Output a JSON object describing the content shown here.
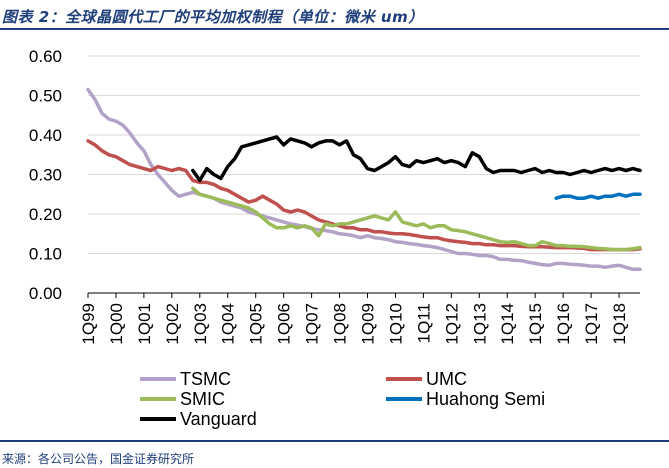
{
  "figure": {
    "title": "图表 2：全球晶圆代工厂的平均加权制程（单位：微米 um）",
    "source": "来源：各公司公告，国金证券研究所"
  },
  "chart_data": {
    "type": "line",
    "title": "图表 2：全球晶圆代工厂的平均加权制程（单位：微米 um）",
    "xlabel": "",
    "ylabel": "",
    "ylim": [
      0,
      0.6
    ],
    "yticks": [
      "0.00",
      "0.10",
      "0.20",
      "0.30",
      "0.40",
      "0.50",
      "0.60"
    ],
    "x_start_year": 1999,
    "x_end_quarter_index": 79,
    "categories": [
      "1Q99",
      "1Q00",
      "1Q01",
      "1Q02",
      "1Q03",
      "1Q04",
      "1Q05",
      "1Q06",
      "1Q07",
      "1Q08",
      "1Q09",
      "1Q10",
      "1Q11",
      "1Q12",
      "1Q13",
      "1Q14",
      "1Q15",
      "1Q16",
      "1Q17",
      "1Q18"
    ],
    "legend_position": "bottom",
    "series": [
      {
        "name": "TSMC",
        "color": "#b3a2c7",
        "points": [
          [
            0,
            0.515
          ],
          [
            1,
            0.49
          ],
          [
            2,
            0.455
          ],
          [
            3,
            0.44
          ],
          [
            4,
            0.435
          ],
          [
            5,
            0.425
          ],
          [
            6,
            0.405
          ],
          [
            7,
            0.38
          ],
          [
            8,
            0.36
          ],
          [
            9,
            0.325
          ],
          [
            10,
            0.3
          ],
          [
            11,
            0.28
          ],
          [
            12,
            0.26
          ],
          [
            13,
            0.245
          ],
          [
            14,
            0.25
          ],
          [
            15,
            0.255
          ],
          [
            16,
            0.25
          ],
          [
            17,
            0.245
          ],
          [
            18,
            0.24
          ],
          [
            19,
            0.23
          ],
          [
            20,
            0.225
          ],
          [
            21,
            0.22
          ],
          [
            22,
            0.215
          ],
          [
            23,
            0.205
          ],
          [
            24,
            0.2
          ],
          [
            25,
            0.195
          ],
          [
            26,
            0.19
          ],
          [
            27,
            0.185
          ],
          [
            28,
            0.18
          ],
          [
            29,
            0.175
          ],
          [
            30,
            0.172
          ],
          [
            31,
            0.168
          ],
          [
            32,
            0.163
          ],
          [
            33,
            0.16
          ],
          [
            34,
            0.158
          ],
          [
            35,
            0.155
          ],
          [
            36,
            0.15
          ],
          [
            37,
            0.148
          ],
          [
            38,
            0.145
          ],
          [
            39,
            0.14
          ],
          [
            40,
            0.145
          ],
          [
            41,
            0.14
          ],
          [
            42,
            0.138
          ],
          [
            43,
            0.135
          ],
          [
            44,
            0.13
          ],
          [
            45,
            0.128
          ],
          [
            46,
            0.125
          ],
          [
            47,
            0.123
          ],
          [
            48,
            0.12
          ],
          [
            49,
            0.118
          ],
          [
            50,
            0.115
          ],
          [
            51,
            0.11
          ],
          [
            52,
            0.105
          ],
          [
            53,
            0.1
          ],
          [
            54,
            0.1
          ],
          [
            55,
            0.098
          ],
          [
            56,
            0.095
          ],
          [
            57,
            0.095
          ],
          [
            58,
            0.092
          ],
          [
            59,
            0.085
          ],
          [
            60,
            0.085
          ],
          [
            61,
            0.083
          ],
          [
            62,
            0.082
          ],
          [
            63,
            0.078
          ],
          [
            64,
            0.075
          ],
          [
            65,
            0.072
          ],
          [
            66,
            0.07
          ],
          [
            67,
            0.075
          ],
          [
            68,
            0.075
          ],
          [
            69,
            0.073
          ],
          [
            70,
            0.072
          ],
          [
            71,
            0.07
          ],
          [
            72,
            0.068
          ],
          [
            73,
            0.068
          ],
          [
            74,
            0.065
          ],
          [
            75,
            0.068
          ],
          [
            76,
            0.07
          ],
          [
            77,
            0.065
          ],
          [
            78,
            0.06
          ],
          [
            79,
            0.06
          ]
        ]
      },
      {
        "name": "UMC",
        "color": "#c0504d",
        "points": [
          [
            0,
            0.385
          ],
          [
            1,
            0.375
          ],
          [
            2,
            0.36
          ],
          [
            3,
            0.35
          ],
          [
            4,
            0.345
          ],
          [
            5,
            0.335
          ],
          [
            6,
            0.325
          ],
          [
            7,
            0.32
          ],
          [
            8,
            0.315
          ],
          [
            9,
            0.31
          ],
          [
            10,
            0.32
          ],
          [
            11,
            0.315
          ],
          [
            12,
            0.31
          ],
          [
            13,
            0.315
          ],
          [
            14,
            0.31
          ],
          [
            15,
            0.285
          ],
          [
            16,
            0.28
          ],
          [
            17,
            0.28
          ],
          [
            18,
            0.275
          ],
          [
            19,
            0.265
          ],
          [
            20,
            0.26
          ],
          [
            21,
            0.25
          ],
          [
            22,
            0.24
          ],
          [
            23,
            0.23
          ],
          [
            24,
            0.235
          ],
          [
            25,
            0.245
          ],
          [
            26,
            0.235
          ],
          [
            27,
            0.225
          ],
          [
            28,
            0.21
          ],
          [
            29,
            0.205
          ],
          [
            30,
            0.21
          ],
          [
            31,
            0.205
          ],
          [
            32,
            0.195
          ],
          [
            33,
            0.185
          ],
          [
            34,
            0.18
          ],
          [
            35,
            0.175
          ],
          [
            36,
            0.17
          ],
          [
            37,
            0.165
          ],
          [
            38,
            0.165
          ],
          [
            39,
            0.16
          ],
          [
            40,
            0.16
          ],
          [
            41,
            0.155
          ],
          [
            42,
            0.155
          ],
          [
            43,
            0.152
          ],
          [
            44,
            0.15
          ],
          [
            45,
            0.15
          ],
          [
            46,
            0.148
          ],
          [
            47,
            0.145
          ],
          [
            48,
            0.142
          ],
          [
            49,
            0.14
          ],
          [
            50,
            0.14
          ],
          [
            51,
            0.135
          ],
          [
            52,
            0.132
          ],
          [
            53,
            0.13
          ],
          [
            54,
            0.128
          ],
          [
            55,
            0.125
          ],
          [
            56,
            0.125
          ],
          [
            57,
            0.122
          ],
          [
            58,
            0.122
          ],
          [
            59,
            0.12
          ],
          [
            60,
            0.12
          ],
          [
            61,
            0.12
          ],
          [
            62,
            0.118
          ],
          [
            63,
            0.117
          ],
          [
            64,
            0.117
          ],
          [
            65,
            0.117
          ],
          [
            66,
            0.116
          ],
          [
            67,
            0.115
          ],
          [
            68,
            0.115
          ],
          [
            69,
            0.115
          ],
          [
            70,
            0.114
          ],
          [
            71,
            0.113
          ],
          [
            72,
            0.11
          ],
          [
            73,
            0.11
          ],
          [
            74,
            0.11
          ],
          [
            75,
            0.11
          ],
          [
            76,
            0.11
          ],
          [
            77,
            0.11
          ],
          [
            78,
            0.11
          ],
          [
            79,
            0.112
          ]
        ]
      },
      {
        "name": "SMIC",
        "color": "#9bbb59",
        "points": [
          [
            15,
            0.265
          ],
          [
            16,
            0.25
          ],
          [
            17,
            0.245
          ],
          [
            18,
            0.24
          ],
          [
            19,
            0.235
          ],
          [
            20,
            0.23
          ],
          [
            21,
            0.225
          ],
          [
            22,
            0.22
          ],
          [
            23,
            0.215
          ],
          [
            24,
            0.205
          ],
          [
            25,
            0.19
          ],
          [
            26,
            0.175
          ],
          [
            27,
            0.165
          ],
          [
            28,
            0.165
          ],
          [
            29,
            0.17
          ],
          [
            30,
            0.165
          ],
          [
            31,
            0.17
          ],
          [
            32,
            0.165
          ],
          [
            33,
            0.145
          ],
          [
            34,
            0.175
          ],
          [
            35,
            0.17
          ],
          [
            36,
            0.175
          ],
          [
            37,
            0.175
          ],
          [
            38,
            0.18
          ],
          [
            39,
            0.185
          ],
          [
            40,
            0.19
          ],
          [
            41,
            0.195
          ],
          [
            42,
            0.19
          ],
          [
            43,
            0.185
          ],
          [
            44,
            0.205
          ],
          [
            45,
            0.18
          ],
          [
            46,
            0.175
          ],
          [
            47,
            0.17
          ],
          [
            48,
            0.175
          ],
          [
            49,
            0.165
          ],
          [
            50,
            0.17
          ],
          [
            51,
            0.17
          ],
          [
            52,
            0.16
          ],
          [
            53,
            0.158
          ],
          [
            54,
            0.155
          ],
          [
            55,
            0.15
          ],
          [
            56,
            0.145
          ],
          [
            57,
            0.14
          ],
          [
            58,
            0.135
          ],
          [
            59,
            0.13
          ],
          [
            60,
            0.128
          ],
          [
            61,
            0.13
          ],
          [
            62,
            0.125
          ],
          [
            63,
            0.12
          ],
          [
            64,
            0.12
          ],
          [
            65,
            0.13
          ],
          [
            66,
            0.125
          ],
          [
            67,
            0.12
          ],
          [
            68,
            0.12
          ],
          [
            69,
            0.118
          ],
          [
            70,
            0.118
          ],
          [
            71,
            0.117
          ],
          [
            72,
            0.115
          ],
          [
            73,
            0.113
          ],
          [
            74,
            0.112
          ],
          [
            75,
            0.11
          ],
          [
            76,
            0.11
          ],
          [
            77,
            0.11
          ],
          [
            78,
            0.112
          ],
          [
            79,
            0.115
          ]
        ]
      },
      {
        "name": "Huahong Semi",
        "color": "#0070c0",
        "points": [
          [
            67,
            0.24
          ],
          [
            68,
            0.245
          ],
          [
            69,
            0.245
          ],
          [
            70,
            0.24
          ],
          [
            71,
            0.24
          ],
          [
            72,
            0.245
          ],
          [
            73,
            0.24
          ],
          [
            74,
            0.245
          ],
          [
            75,
            0.245
          ],
          [
            76,
            0.25
          ],
          [
            77,
            0.245
          ],
          [
            78,
            0.25
          ],
          [
            79,
            0.25
          ]
        ]
      },
      {
        "name": "Vanguard",
        "color": "#000000",
        "points": [
          [
            15,
            0.31
          ],
          [
            16,
            0.285
          ],
          [
            17,
            0.315
          ],
          [
            18,
            0.3
          ],
          [
            19,
            0.29
          ],
          [
            20,
            0.32
          ],
          [
            21,
            0.34
          ],
          [
            22,
            0.37
          ],
          [
            23,
            0.375
          ],
          [
            24,
            0.38
          ],
          [
            25,
            0.385
          ],
          [
            26,
            0.39
          ],
          [
            27,
            0.395
          ],
          [
            28,
            0.375
          ],
          [
            29,
            0.39
          ],
          [
            30,
            0.385
          ],
          [
            31,
            0.38
          ],
          [
            32,
            0.37
          ],
          [
            33,
            0.38
          ],
          [
            34,
            0.385
          ],
          [
            35,
            0.385
          ],
          [
            36,
            0.375
          ],
          [
            37,
            0.385
          ],
          [
            38,
            0.35
          ],
          [
            39,
            0.34
          ],
          [
            40,
            0.315
          ],
          [
            41,
            0.31
          ],
          [
            42,
            0.32
          ],
          [
            43,
            0.33
          ],
          [
            44,
            0.345
          ],
          [
            45,
            0.325
          ],
          [
            46,
            0.32
          ],
          [
            47,
            0.335
          ],
          [
            48,
            0.33
          ],
          [
            49,
            0.335
          ],
          [
            50,
            0.34
          ],
          [
            51,
            0.33
          ],
          [
            52,
            0.335
          ],
          [
            53,
            0.33
          ],
          [
            54,
            0.32
          ],
          [
            55,
            0.355
          ],
          [
            56,
            0.345
          ],
          [
            57,
            0.315
          ],
          [
            58,
            0.305
          ],
          [
            59,
            0.31
          ],
          [
            60,
            0.31
          ],
          [
            61,
            0.31
          ],
          [
            62,
            0.305
          ],
          [
            63,
            0.31
          ],
          [
            64,
            0.315
          ],
          [
            65,
            0.305
          ],
          [
            66,
            0.31
          ],
          [
            67,
            0.305
          ],
          [
            68,
            0.305
          ],
          [
            69,
            0.3
          ],
          [
            70,
            0.305
          ],
          [
            71,
            0.31
          ],
          [
            72,
            0.305
          ],
          [
            73,
            0.31
          ],
          [
            74,
            0.315
          ],
          [
            75,
            0.31
          ],
          [
            76,
            0.315
          ],
          [
            77,
            0.31
          ],
          [
            78,
            0.315
          ],
          [
            79,
            0.31
          ]
        ]
      }
    ]
  }
}
